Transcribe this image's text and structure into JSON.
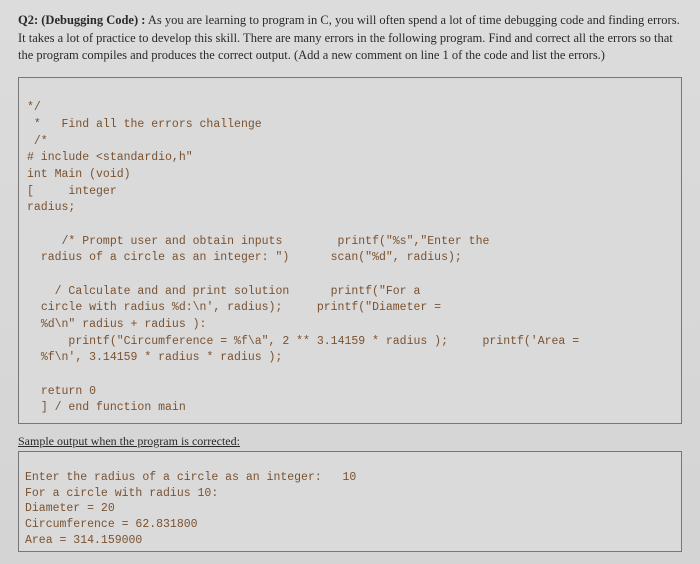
{
  "question": {
    "label": "Q2: (Debugging Code) :",
    "body": "As you are learning to program in C, you will often spend a lot of time debugging code and finding errors. It takes a lot of practice to develop this skill. There are many errors in the following program. Find and correct all the errors so that the program compiles and produces the correct output. (Add a new comment on line 1 of the code and list the errors.)"
  },
  "code": {
    "lines": [
      "*/",
      " *   Find all the errors challenge",
      " /*",
      "# include <standardio,h\"",
      "int Main (void)",
      "[     integer",
      "radius;",
      "",
      "     /* Prompt user and obtain inputs        printf(\"%s\",\"Enter the",
      "  radius of a circle as an integer: \")      scan(\"%d\", radius);",
      "",
      "    / Calculate and and print solution      printf(\"For a",
      "  circle with radius %d:\\n', radius);     printf(\"Diameter =",
      "  %d\\n\" radius + radius ):",
      "      printf(\"Circumference = %f\\a\", 2 ** 3.14159 * radius );     printf('Area =",
      "  %f\\n', 3.14159 * radius * radius );",
      "",
      "  return 0",
      "  ] / end function main"
    ]
  },
  "output": {
    "label": "Sample output when the program is corrected:",
    "lines": [
      "Enter the radius of a circle as an integer:   10",
      "For a circle with radius 10:",
      "Diameter = 20",
      "Circumference = 62.831800",
      "Area = 314.159000"
    ]
  },
  "colors": {
    "text": "#7a5230",
    "border": "#777777",
    "page_bg": "#d8d8d8",
    "body_text": "#2a2a2a"
  }
}
